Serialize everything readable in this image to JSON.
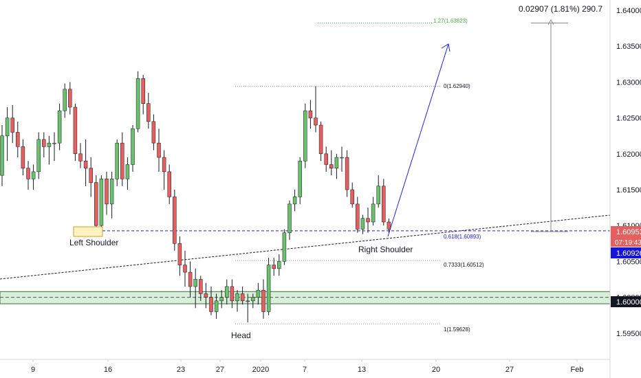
{
  "chart_data": {
    "type": "candlestick",
    "colors": {
      "up": "#6cbf6c",
      "down": "#e45f5f",
      "fib": "#999999",
      "target": "#4caf50",
      "blue": "#2222cc"
    },
    "x_ticks": [
      "9",
      "16",
      "23",
      "27",
      "2020",
      "7",
      "13",
      "20",
      "27",
      "Feb"
    ],
    "y_ticks": [
      "1.64000",
      "1.63500",
      "1.63000",
      "1.62500",
      "1.62000",
      "1.61500",
      "1.61000",
      "1.60500",
      "1.60000",
      "1.59500"
    ],
    "ylim": [
      1.5925,
      1.6415
    ],
    "price_labels": {
      "upper": "1.60953",
      "countdown": "07:19:43",
      "current": "1.60926",
      "support": "1.60000"
    },
    "measure_label": "0.02907 (1.81%) 290.7",
    "fib_levels": [
      {
        "label": "1.27(1.63823)",
        "value": 1.63823
      },
      {
        "label": "0(1.62940)",
        "value": 1.6294
      },
      {
        "label": "0.618(1.60893)",
        "value": 1.60893
      },
      {
        "label": "0.7333(1.60512)",
        "value": 1.60512
      },
      {
        "label": "1(1.59628)",
        "value": 1.59628
      }
    ],
    "annotations": {
      "left_shoulder": "Left Shoulder",
      "head": "Head",
      "right_shoulder": "Right Shoulder"
    },
    "support_zone": [
      1.5991,
      1.6008
    ],
    "candles": [
      [
        1.617,
        1.624,
        1.6155,
        1.6225
      ],
      [
        1.6225,
        1.6265,
        1.619,
        1.625
      ],
      [
        1.625,
        1.6268,
        1.6215,
        1.623
      ],
      [
        1.623,
        1.6245,
        1.6195,
        1.621
      ],
      [
        1.621,
        1.622,
        1.617,
        1.618
      ],
      [
        1.618,
        1.619,
        1.615,
        1.6165
      ],
      [
        1.6165,
        1.6185,
        1.615,
        1.6175
      ],
      [
        1.6175,
        1.623,
        1.6165,
        1.622
      ],
      [
        1.622,
        1.623,
        1.6195,
        1.621
      ],
      [
        1.621,
        1.6225,
        1.6185,
        1.6215
      ],
      [
        1.6215,
        1.623,
        1.619,
        1.6215
      ],
      [
        1.6215,
        1.627,
        1.6205,
        1.626
      ],
      [
        1.626,
        1.6298,
        1.625,
        1.629
      ],
      [
        1.629,
        1.63,
        1.6255,
        1.6265
      ],
      [
        1.6265,
        1.627,
        1.619,
        1.62
      ],
      [
        1.62,
        1.6215,
        1.618,
        1.619
      ],
      [
        1.619,
        1.622,
        1.6155,
        1.618
      ],
      [
        1.618,
        1.6195,
        1.614,
        1.616
      ],
      [
        1.616,
        1.617,
        1.609,
        1.61
      ],
      [
        1.61,
        1.617,
        1.609,
        1.6165
      ],
      [
        1.6165,
        1.6175,
        1.6115,
        1.613
      ],
      [
        1.613,
        1.6175,
        1.611,
        1.6165
      ],
      [
        1.6165,
        1.622,
        1.6155,
        1.6215
      ],
      [
        1.6215,
        1.623,
        1.6155,
        1.6165
      ],
      [
        1.6165,
        1.6195,
        1.615,
        1.6185
      ],
      [
        1.6185,
        1.624,
        1.6175,
        1.6235
      ],
      [
        1.6235,
        1.6315,
        1.623,
        1.6305
      ],
      [
        1.6305,
        1.631,
        1.6255,
        1.627
      ],
      [
        1.627,
        1.6285,
        1.6235,
        1.6245
      ],
      [
        1.6245,
        1.6255,
        1.6205,
        1.6215
      ],
      [
        1.6215,
        1.6235,
        1.6175,
        1.6195
      ],
      [
        1.6195,
        1.6205,
        1.615,
        1.6175
      ],
      [
        1.6175,
        1.6185,
        1.613,
        1.614
      ],
      [
        1.614,
        1.615,
        1.6065,
        1.6075
      ],
      [
        1.6075,
        1.6085,
        1.603,
        1.6045
      ],
      [
        1.6045,
        1.6065,
        1.6015,
        1.6035
      ],
      [
        1.6035,
        1.605,
        1.6,
        1.6015
      ],
      [
        1.6015,
        1.604,
        1.5985,
        1.6025
      ],
      [
        1.6025,
        1.603,
        1.5995,
        1.6005
      ],
      [
        1.6005,
        1.602,
        1.5985,
        1.6
      ],
      [
        1.6,
        1.6015,
        1.5975,
        1.598
      ],
      [
        1.598,
        1.6005,
        1.597,
        1.5995
      ],
      [
        1.5995,
        1.601,
        1.5985,
        1.6
      ],
      [
        1.6,
        1.6025,
        1.599,
        1.6015
      ],
      [
        1.6015,
        1.6025,
        1.5985,
        1.5995
      ],
      [
        1.5995,
        1.601,
        1.598,
        1.6005
      ],
      [
        1.6005,
        1.6015,
        1.599,
        1.5995
      ],
      [
        1.5995,
        1.6005,
        1.5965,
        1.5995
      ],
      [
        1.5995,
        1.6005,
        1.5985,
        1.6
      ],
      [
        1.6,
        1.602,
        1.599,
        1.601
      ],
      [
        1.601,
        1.6025,
        1.597,
        1.598
      ],
      [
        1.598,
        1.6055,
        1.5975,
        1.6045
      ],
      [
        1.6045,
        1.6055,
        1.603,
        1.604
      ],
      [
        1.604,
        1.606,
        1.603,
        1.605
      ],
      [
        1.605,
        1.6095,
        1.6045,
        1.609
      ],
      [
        1.609,
        1.6135,
        1.608,
        1.613
      ],
      [
        1.613,
        1.615,
        1.612,
        1.614
      ],
      [
        1.614,
        1.6195,
        1.613,
        1.619
      ],
      [
        1.619,
        1.627,
        1.618,
        1.626
      ],
      [
        1.626,
        1.6275,
        1.6235,
        1.625
      ],
      [
        1.625,
        1.6294,
        1.623,
        1.624
      ],
      [
        1.624,
        1.6245,
        1.619,
        1.62
      ],
      [
        1.62,
        1.621,
        1.6175,
        1.6185
      ],
      [
        1.6185,
        1.6205,
        1.617,
        1.618
      ],
      [
        1.618,
        1.62,
        1.6165,
        1.6195
      ],
      [
        1.6195,
        1.621,
        1.6175,
        1.6195
      ],
      [
        1.6195,
        1.6205,
        1.614,
        1.615
      ],
      [
        1.615,
        1.616,
        1.6125,
        1.613
      ],
      [
        1.613,
        1.614,
        1.609,
        1.6095
      ],
      [
        1.6095,
        1.6115,
        1.6088,
        1.611
      ],
      [
        1.611,
        1.6125,
        1.609,
        1.6105
      ],
      [
        1.6105,
        1.614,
        1.61,
        1.613
      ],
      [
        1.613,
        1.617,
        1.6125,
        1.6155
      ],
      [
        1.6155,
        1.6165,
        1.61,
        1.6105
      ],
      [
        1.6105,
        1.611,
        1.609,
        1.6095
      ]
    ]
  }
}
